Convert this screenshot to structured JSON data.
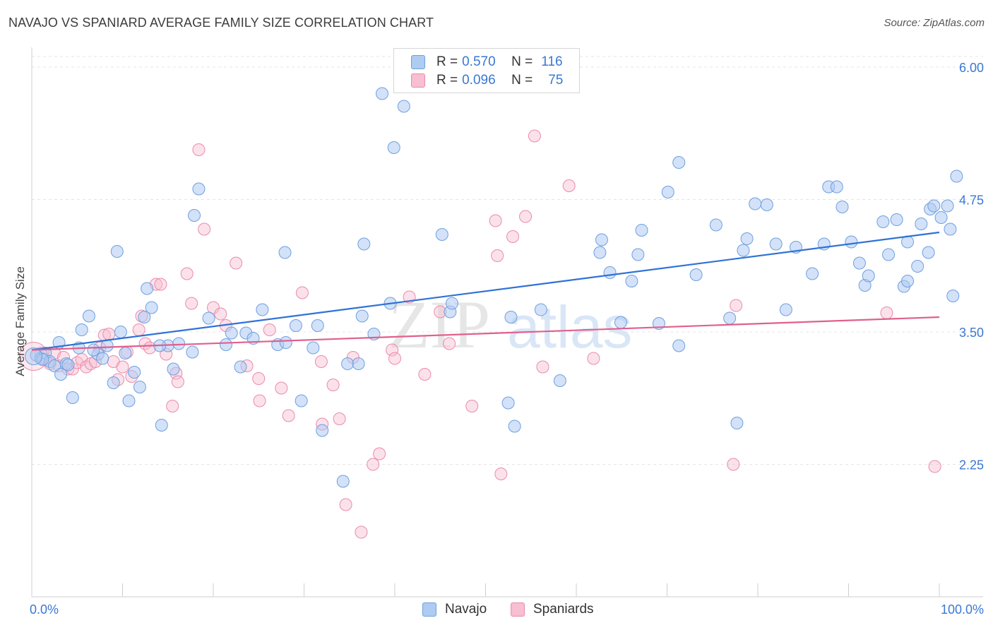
{
  "header": {
    "title": "NAVAJO VS SPANIARD AVERAGE FAMILY SIZE CORRELATION CHART",
    "source": "Source: ZipAtlas.com"
  },
  "legend": {
    "navajo": {
      "r_label": "R =",
      "r_value": "0.570",
      "n_label": "N =",
      "n_value": "116"
    },
    "spaniards": {
      "r_label": "R =",
      "r_value": "0.096",
      "n_label": "N =",
      "n_value": "75"
    }
  },
  "bottom_legend": {
    "navajo": "Navajo",
    "spaniards": "Spaniards"
  },
  "colors": {
    "navajo_fill": "#aecbf2",
    "navajo_stroke": "#6f9fe0",
    "navajo_line": "#2f72d6",
    "spaniard_fill": "#f7bfd1",
    "spaniard_stroke": "#eb8aab",
    "spaniard_line": "#e0608e",
    "tick_label": "#3a78d4",
    "grid": "#e4e4e4"
  },
  "chart_data": {
    "type": "scatter",
    "title": "NAVAJO VS SPANIARD AVERAGE FAMILY SIZE CORRELATION CHART",
    "xlabel": "",
    "ylabel": "Average Family Size",
    "xlim": [
      0,
      100
    ],
    "ylim": [
      1.0,
      6.1
    ],
    "x_tick_labels": [
      "0.0%",
      "100.0%"
    ],
    "y_ticks": [
      2.25,
      3.5,
      4.75,
      6.0
    ],
    "y_tick_labels": [
      "2.25",
      "3.50",
      "4.75",
      "6.00"
    ],
    "grid": "horizontal dashed",
    "legend_position": "top-center",
    "watermark": "ZIPatlas",
    "series": [
      {
        "name": "Navajo",
        "R": 0.57,
        "N": 116,
        "trend": {
          "x": [
            0,
            100
          ],
          "y": [
            3.33,
            4.44
          ]
        },
        "points": [
          [
            0.5,
            3.28
          ],
          [
            1.0,
            3.25
          ],
          [
            1.5,
            3.3
          ],
          [
            2.0,
            3.22
          ],
          [
            2.5,
            3.18
          ],
          [
            3.0,
            3.4
          ],
          [
            3.2,
            3.1
          ],
          [
            3.8,
            3.2
          ],
          [
            4.5,
            2.88
          ],
          [
            5.2,
            3.35
          ],
          [
            5.5,
            3.52
          ],
          [
            6.3,
            3.65
          ],
          [
            7.3,
            3.29
          ],
          [
            7.8,
            3.25
          ],
          [
            8.3,
            3.37
          ],
          [
            9.0,
            3.02
          ],
          [
            9.4,
            4.26
          ],
          [
            9.8,
            3.5
          ],
          [
            10.3,
            3.3
          ],
          [
            10.7,
            2.85
          ],
          [
            11.3,
            3.12
          ],
          [
            11.9,
            2.98
          ],
          [
            12.4,
            3.64
          ],
          [
            12.7,
            3.91
          ],
          [
            13.2,
            3.73
          ],
          [
            14.3,
            2.62
          ],
          [
            15.0,
            3.37
          ],
          [
            15.6,
            3.15
          ],
          [
            16.2,
            3.39
          ],
          [
            17.7,
            3.31
          ],
          [
            17.9,
            4.6
          ],
          [
            18.4,
            4.85
          ],
          [
            19.5,
            3.63
          ],
          [
            22.0,
            3.49
          ],
          [
            23.6,
            3.49
          ],
          [
            23.0,
            3.17
          ],
          [
            21.4,
            3.38
          ],
          [
            24.4,
            3.44
          ],
          [
            25.4,
            3.71
          ],
          [
            27.1,
            3.38
          ],
          [
            28.0,
            3.4
          ],
          [
            27.9,
            4.25
          ],
          [
            29.1,
            3.56
          ],
          [
            29.7,
            2.85
          ],
          [
            31.5,
            3.56
          ],
          [
            32.0,
            2.57
          ],
          [
            34.3,
            2.09
          ],
          [
            34.8,
            3.2
          ],
          [
            36.0,
            3.2
          ],
          [
            36.4,
            3.65
          ],
          [
            36.6,
            4.33
          ],
          [
            37.7,
            3.48
          ],
          [
            38.6,
            5.75
          ],
          [
            39.5,
            3.77
          ],
          [
            39.9,
            5.24
          ],
          [
            41.0,
            5.63
          ],
          [
            45.2,
            4.42
          ],
          [
            46.1,
            3.69
          ],
          [
            46.3,
            3.77
          ],
          [
            52.5,
            2.83
          ],
          [
            52.8,
            3.64
          ],
          [
            53.2,
            2.61
          ],
          [
            56.1,
            3.71
          ],
          [
            58.2,
            3.04
          ],
          [
            62.6,
            4.25
          ],
          [
            62.8,
            4.37
          ],
          [
            63.7,
            4.06
          ],
          [
            64.9,
            3.59
          ],
          [
            66.1,
            3.98
          ],
          [
            66.8,
            4.23
          ],
          [
            67.2,
            4.46
          ],
          [
            69.1,
            3.58
          ],
          [
            70.1,
            4.82
          ],
          [
            71.3,
            3.37
          ],
          [
            71.3,
            5.1
          ],
          [
            73.2,
            4.04
          ],
          [
            75.4,
            4.51
          ],
          [
            76.9,
            3.63
          ],
          [
            77.7,
            2.64
          ],
          [
            78.4,
            4.27
          ],
          [
            78.8,
            4.38
          ],
          [
            79.7,
            4.71
          ],
          [
            81.0,
            4.7
          ],
          [
            82.0,
            4.33
          ],
          [
            83.1,
            3.71
          ],
          [
            84.2,
            4.3
          ],
          [
            86.0,
            4.05
          ],
          [
            87.3,
            4.33
          ],
          [
            87.8,
            4.87
          ],
          [
            88.7,
            4.87
          ],
          [
            89.3,
            4.68
          ],
          [
            90.3,
            4.35
          ],
          [
            91.2,
            4.15
          ],
          [
            91.8,
            3.94
          ],
          [
            92.2,
            4.03
          ],
          [
            93.8,
            4.54
          ],
          [
            94.4,
            4.23
          ],
          [
            95.3,
            4.56
          ],
          [
            96.1,
            3.93
          ],
          [
            96.5,
            4.35
          ],
          [
            96.5,
            3.98
          ],
          [
            97.6,
            4.12
          ],
          [
            98.0,
            4.52
          ],
          [
            98.8,
            4.25
          ],
          [
            99.0,
            4.66
          ],
          [
            99.4,
            4.69
          ],
          [
            100.2,
            4.58
          ],
          [
            100.9,
            4.69
          ],
          [
            101.2,
            4.47
          ],
          [
            101.5,
            3.84
          ],
          [
            101.9,
            4.97
          ],
          [
            1.2,
            3.24
          ],
          [
            4.0,
            3.19
          ],
          [
            6.8,
            3.33
          ],
          [
            14.1,
            3.37
          ],
          [
            31.0,
            3.35
          ]
        ]
      },
      {
        "name": "Spaniards",
        "R": 0.096,
        "N": 75,
        "trend": {
          "x": [
            0,
            100
          ],
          "y": [
            3.33,
            3.64
          ]
        },
        "points": [
          [
            1.0,
            3.3
          ],
          [
            1.5,
            3.24
          ],
          [
            2.0,
            3.2
          ],
          [
            2.5,
            3.3
          ],
          [
            3.0,
            3.18
          ],
          [
            3.5,
            3.26
          ],
          [
            4.0,
            3.15
          ],
          [
            4.5,
            3.15
          ],
          [
            5.0,
            3.21
          ],
          [
            5.5,
            3.24
          ],
          [
            6.0,
            3.17
          ],
          [
            6.5,
            3.2
          ],
          [
            7.0,
            3.22
          ],
          [
            7.5,
            3.35
          ],
          [
            8.0,
            3.47
          ],
          [
            8.5,
            3.48
          ],
          [
            9.0,
            3.22
          ],
          [
            9.5,
            3.05
          ],
          [
            10.0,
            3.17
          ],
          [
            10.5,
            3.31
          ],
          [
            11.0,
            3.08
          ],
          [
            11.8,
            3.52
          ],
          [
            12.1,
            3.65
          ],
          [
            12.5,
            3.39
          ],
          [
            13.0,
            3.35
          ],
          [
            13.7,
            3.95
          ],
          [
            14.2,
            3.95
          ],
          [
            14.8,
            3.29
          ],
          [
            15.5,
            2.8
          ],
          [
            15.9,
            3.11
          ],
          [
            16.1,
            3.03
          ],
          [
            17.1,
            4.05
          ],
          [
            17.6,
            3.77
          ],
          [
            18.4,
            5.22
          ],
          [
            19.0,
            4.47
          ],
          [
            20.0,
            3.73
          ],
          [
            20.8,
            3.67
          ],
          [
            21.4,
            3.56
          ],
          [
            22.5,
            4.15
          ],
          [
            23.7,
            3.18
          ],
          [
            25.0,
            3.06
          ],
          [
            25.1,
            2.85
          ],
          [
            26.2,
            3.52
          ],
          [
            27.5,
            2.97
          ],
          [
            28.3,
            2.71
          ],
          [
            29.8,
            3.87
          ],
          [
            31.9,
            3.22
          ],
          [
            32.0,
            2.63
          ],
          [
            33.2,
            3.0
          ],
          [
            33.9,
            2.68
          ],
          [
            34.6,
            1.87
          ],
          [
            35.4,
            3.26
          ],
          [
            36.3,
            1.61
          ],
          [
            37.6,
            2.25
          ],
          [
            38.3,
            2.35
          ],
          [
            39.7,
            3.33
          ],
          [
            40.0,
            3.25
          ],
          [
            41.6,
            3.83
          ],
          [
            43.3,
            3.1
          ],
          [
            45.0,
            3.69
          ],
          [
            46.0,
            3.39
          ],
          [
            48.5,
            2.8
          ],
          [
            51.1,
            4.55
          ],
          [
            51.3,
            4.22
          ],
          [
            51.7,
            2.16
          ],
          [
            53.0,
            4.4
          ],
          [
            54.4,
            4.59
          ],
          [
            55.4,
            5.35
          ],
          [
            56.3,
            3.17
          ],
          [
            59.2,
            4.88
          ],
          [
            61.9,
            3.25
          ],
          [
            77.6,
            3.75
          ],
          [
            94.2,
            3.68
          ],
          [
            99.5,
            2.23
          ],
          [
            77.3,
            2.25
          ]
        ]
      }
    ]
  }
}
